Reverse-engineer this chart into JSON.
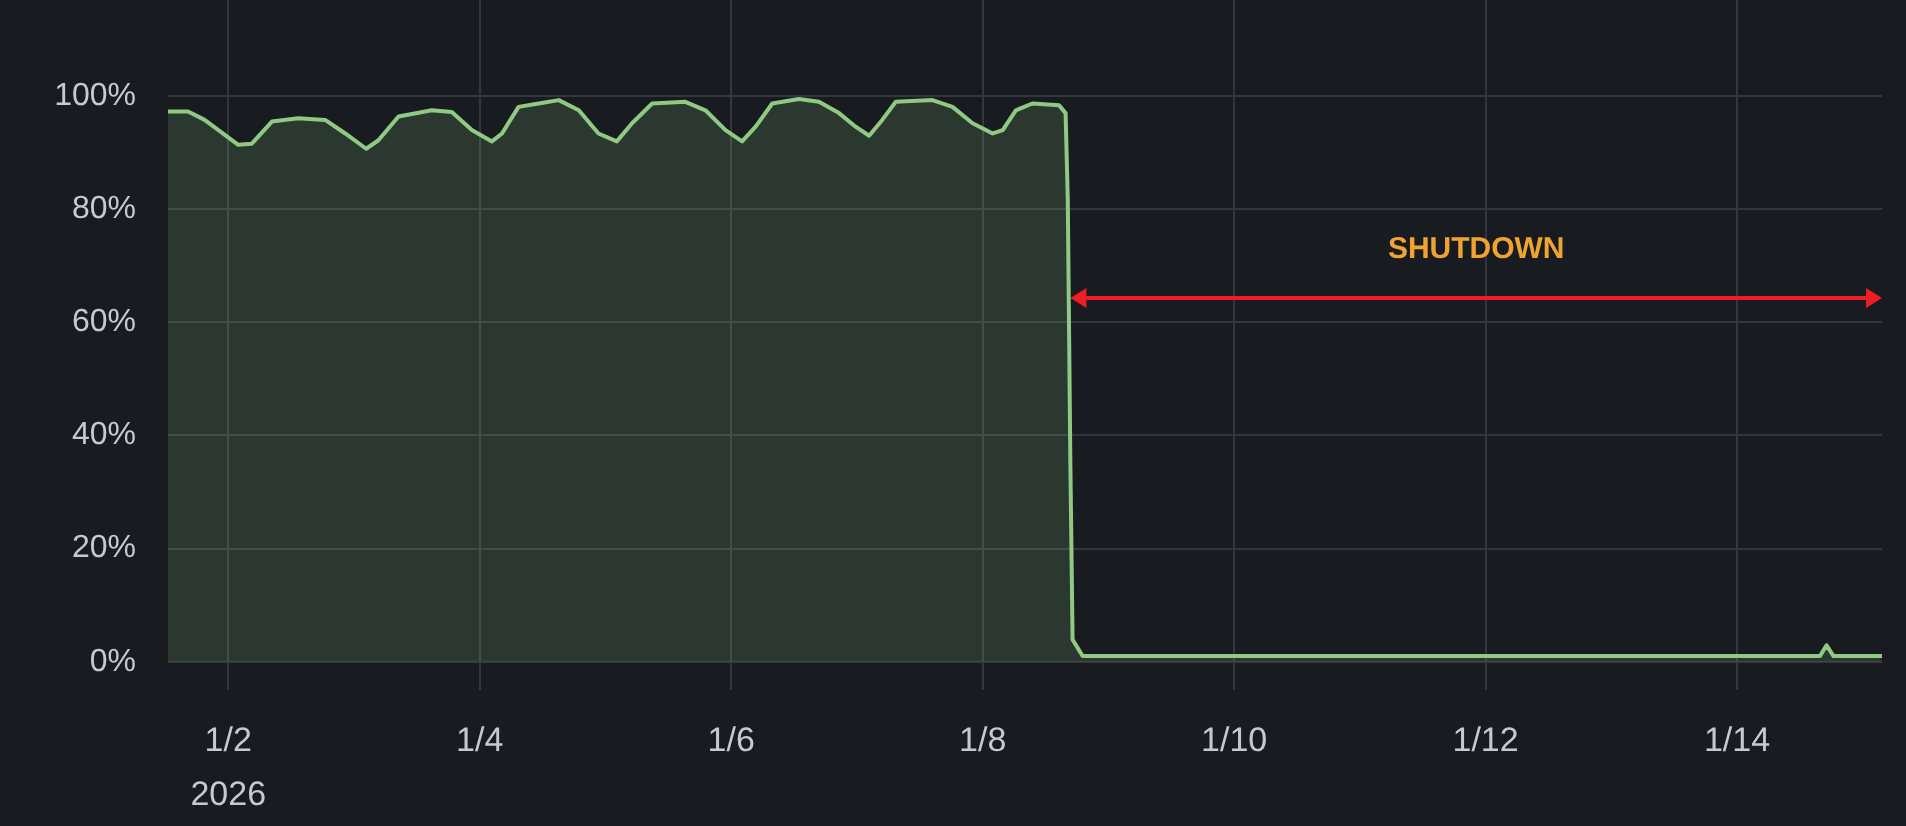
{
  "chart_data": {
    "type": "area",
    "x": [
      "2026-01-01T12:30",
      "2026-01-01T16:20",
      "2026-01-01T19:30",
      "2026-01-02T01:55",
      "2026-01-02T04:30",
      "2026-01-02T08:20",
      "2026-01-02T13:20",
      "2026-01-02T18:30",
      "2026-01-02T22:20",
      "2026-01-03T02:20",
      "2026-01-03T04:40",
      "2026-01-03T08:30",
      "2026-01-03T14:50",
      "2026-01-03T18:40",
      "2026-01-03T22:30",
      "2026-01-04T02:20",
      "2026-01-04T04:15",
      "2026-01-04T07:25",
      "2026-01-04T11:15",
      "2026-01-04T15:05",
      "2026-01-04T18:55",
      "2026-01-04T22:40",
      "2026-01-05T02:10",
      "2026-01-05T05:05",
      "2026-01-05T08:55",
      "2026-01-05T15:15",
      "2026-01-05T19:05",
      "2026-01-05T22:55",
      "2026-01-06T02:05",
      "2026-01-06T04:40",
      "2026-01-06T07:50",
      "2026-01-06T12:55",
      "2026-01-06T16:45",
      "2026-01-06T20:35",
      "2026-01-06T23:45",
      "2026-01-07T02:20",
      "2026-01-07T04:50",
      "2026-01-07T07:25",
      "2026-01-07T14:25",
      "2026-01-07T18:15",
      "2026-01-07T22:05",
      "2026-01-08T01:55",
      "2026-01-08T03:50",
      "2026-01-08T06:20",
      "2026-01-08T09:30",
      "2026-01-08T14:35",
      "2026-01-08T15:50",
      "2026-01-08T16:15",
      "2026-01-08T16:45",
      "2026-01-08T17:10",
      "2026-01-08T19:05",
      "2026-01-14T15:50",
      "2026-01-14T17:05",
      "2026-01-14T18:25",
      "2026-01-15T03:35"
    ],
    "values": [
      97.3,
      97.3,
      95.8,
      91.4,
      91.6,
      95.5,
      96.1,
      95.8,
      93.4,
      90.7,
      92.2,
      96.4,
      97.5,
      97.2,
      94,
      92,
      93.4,
      98.1,
      98.7,
      99.3,
      97.5,
      93.4,
      92,
      95.2,
      98.7,
      99,
      97.5,
      94,
      92,
      94.6,
      98.7,
      99.5,
      99,
      97,
      94.6,
      93,
      95.8,
      99,
      99.3,
      98.1,
      95.2,
      93.4,
      94,
      97.5,
      98.7,
      98.4,
      97,
      81.6,
      34.5,
      3.9,
      1,
      1,
      2.9,
      1,
      1
    ],
    "color": "#8fc983",
    "xlim": [
      "2026-01-01T12:30",
      "2026-01-15T03:40"
    ],
    "xticks": [
      {
        "value": "2026-01-02",
        "label": "1/2\n2026"
      },
      {
        "value": "2026-01-04",
        "label": "1/4"
      },
      {
        "value": "2026-01-06",
        "label": "1/6"
      },
      {
        "value": "2026-01-08",
        "label": "1/8"
      },
      {
        "value": "2026-01-10",
        "label": "1/10"
      },
      {
        "value": "2026-01-12",
        "label": "1/12"
      },
      {
        "value": "2026-01-14",
        "label": "1/14"
      }
    ],
    "ylim": [
      -5,
      117
    ],
    "yticks": [
      {
        "value": 0,
        "label": "0%"
      },
      {
        "value": 20,
        "label": "20%"
      },
      {
        "value": 40,
        "label": "40%"
      },
      {
        "value": 60,
        "label": "60%"
      },
      {
        "value": 80,
        "label": "80%"
      },
      {
        "value": 100,
        "label": "100%"
      }
    ],
    "grid": true,
    "annotations": [
      "SHUTDOWN"
    ]
  }
}
